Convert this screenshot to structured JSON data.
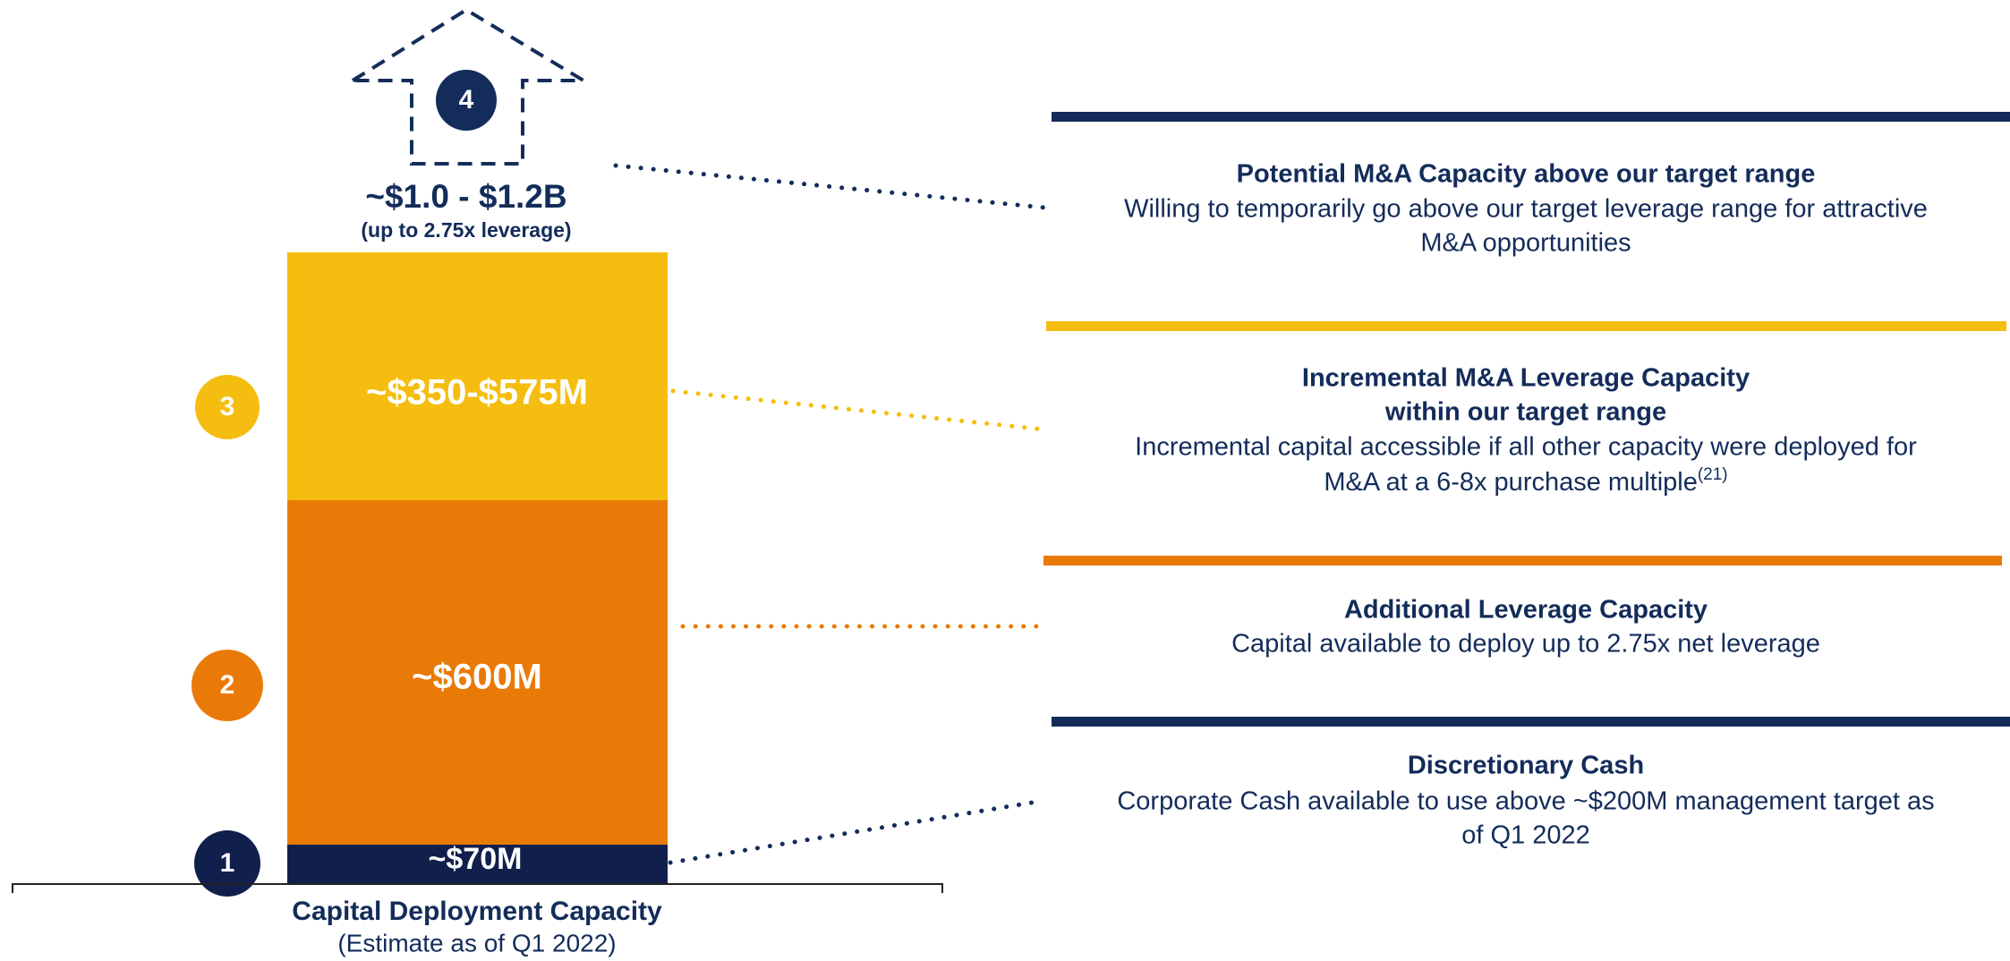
{
  "capacity": {
    "headline": "~$1.0 - $1.2B",
    "headline_note": "(up to 2.75x leverage)",
    "footer_title": "Capital Deployment Capacity",
    "footer_note": "(Estimate as of Q1 2022)"
  },
  "segments": [
    {
      "number": "1",
      "value": "~$70M",
      "title": [
        "Discretionary Cash"
      ],
      "description": [
        "Corporate Cash available to use above ~$200M management target as",
        "of Q1 2022"
      ]
    },
    {
      "number": "2",
      "value": "~$600M",
      "title": [
        "Additional Leverage Capacity"
      ],
      "description": [
        "Capital available to deploy up to 2.75x net leverage"
      ]
    },
    {
      "number": "3",
      "value": "~$350-$575M",
      "title": [
        "Incremental M&A Leverage Capacity",
        "within our target range"
      ],
      "description": [
        "Incremental capital accessible if all other capacity were deployed for",
        "M&A at a 6-8x purchase multiple"
      ],
      "footnote": "(21)"
    },
    {
      "number": "4",
      "title": [
        "Potential M&A Capacity above our target range"
      ],
      "description": [
        "Willing to temporarily go above our target leverage range for attractive",
        "M&A opportunities"
      ]
    }
  ]
}
